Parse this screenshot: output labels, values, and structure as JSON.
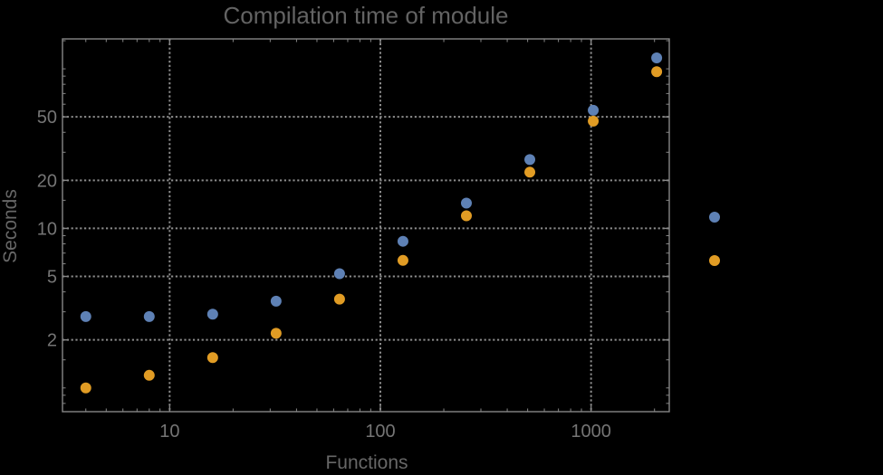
{
  "chart_data": {
    "type": "scatter",
    "title": "Compilation time of module",
    "xlabel": "Functions",
    "ylabel": "Seconds",
    "x_scale": "log",
    "y_scale": "log",
    "x": [
      4,
      8,
      16,
      32,
      64,
      128,
      256,
      512,
      1024,
      2048
    ],
    "series": [
      {
        "name": "series-1",
        "color": "#5e81b5",
        "values": [
          2.8,
          2.8,
          2.9,
          3.5,
          5.2,
          8.3,
          14.4,
          27,
          55,
          117
        ]
      },
      {
        "name": "series-2",
        "color": "#e19c24",
        "values": [
          1.0,
          1.2,
          1.55,
          2.2,
          3.6,
          6.3,
          12,
          22.5,
          47,
          96
        ]
      }
    ],
    "xlim": [
      3.1,
      2350
    ],
    "ylim": [
      0.71,
      154
    ],
    "x_major_ticks": [
      {
        "value": 10,
        "label": "10"
      },
      {
        "value": 100,
        "label": "100"
      },
      {
        "value": 1000,
        "label": "1000"
      }
    ],
    "y_major_ticks": [
      {
        "value": 2,
        "label": "2"
      },
      {
        "value": 5,
        "label": "5"
      },
      {
        "value": 10,
        "label": "10"
      },
      {
        "value": 20,
        "label": "20"
      },
      {
        "value": 50,
        "label": "50"
      }
    ],
    "x_minor_ticks": [
      4,
      5,
      6,
      7,
      8,
      9,
      20,
      30,
      40,
      50,
      60,
      70,
      80,
      90,
      200,
      300,
      400,
      500,
      600,
      700,
      800,
      900,
      2000
    ],
    "y_minor_ticks": [
      0.8,
      0.9,
      1,
      1.5,
      3,
      4,
      6,
      7,
      8,
      9,
      15,
      30,
      40,
      60,
      70,
      80,
      90,
      100,
      150
    ],
    "grid": "dotted lines at labeled major ticks only, full frame box",
    "legend": {
      "position": "outside-right",
      "labels_visible": false,
      "markers": [
        {
          "series": "series-1",
          "color": "#5e81b5"
        },
        {
          "series": "series-2",
          "color": "#e19c24"
        }
      ]
    },
    "colors": {
      "background": "#000000",
      "frame": "#878787",
      "grid": "#8c8c8c",
      "tick_label": "#757575",
      "title": "#636363",
      "axis_label": "#676767"
    }
  }
}
